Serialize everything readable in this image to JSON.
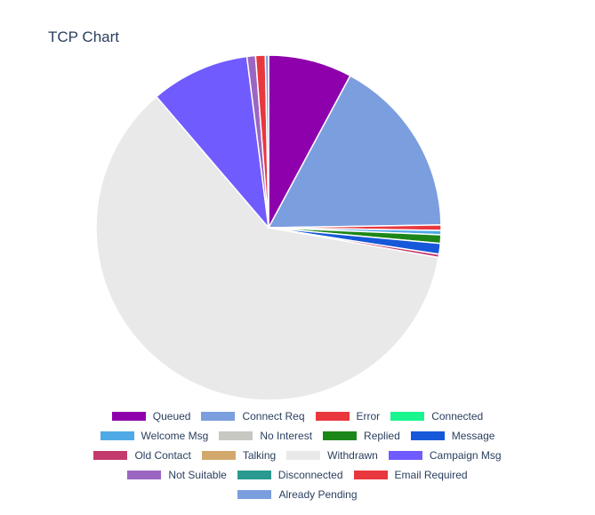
{
  "chart_data": {
    "type": "pie",
    "title": "TCP Chart",
    "legend_position": "bottom",
    "start_angle_deg": 0,
    "direction": "clockwise",
    "slices": [
      {
        "label": "Queued",
        "value": 7.8,
        "color": "#8e00ac"
      },
      {
        "label": "Connect Req",
        "value": 16.8,
        "color": "#7b9ede"
      },
      {
        "label": "Error",
        "value": 0.5,
        "color": "#e8383d"
      },
      {
        "label": "Connected",
        "value": 0.0,
        "color": "#19f58f"
      },
      {
        "label": "Welcome Msg",
        "value": 0.4,
        "color": "#4fa9e6"
      },
      {
        "label": "No Interest",
        "value": 0.0,
        "color": "#c8c8c2"
      },
      {
        "label": "Replied",
        "value": 0.8,
        "color": "#1c8718"
      },
      {
        "label": "Message",
        "value": 1.0,
        "color": "#1658d9"
      },
      {
        "label": "Old Contact",
        "value": 0.3,
        "color": "#c33b6d"
      },
      {
        "label": "Talking",
        "value": 0.0,
        "color": "#d2a86c"
      },
      {
        "label": "Withdrawn",
        "value": 60.6,
        "color": "#e9e9e9"
      },
      {
        "label": "Campaign Msg",
        "value": 9.2,
        "color": "#705bff"
      },
      {
        "label": "Not Suitable",
        "value": 0.8,
        "color": "#9b66c2"
      },
      {
        "label": "Disconnected",
        "value": 0.0,
        "color": "#2a9a91"
      },
      {
        "label": "Email Required",
        "value": 0.9,
        "color": "#e8383d"
      },
      {
        "label": "Already Pending",
        "value": 0.3,
        "color": "#7b9ede"
      }
    ]
  }
}
